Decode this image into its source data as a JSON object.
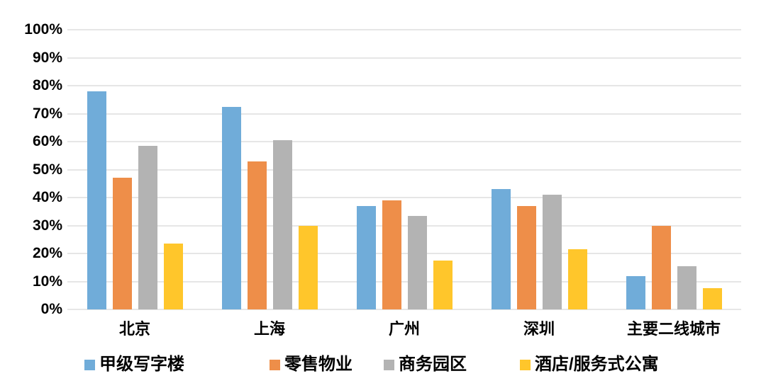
{
  "chart_data": {
    "type": "bar",
    "title": "",
    "xlabel": "",
    "ylabel": "",
    "categories": [
      "北京",
      "上海",
      "广州",
      "深圳",
      "主要二线城市"
    ],
    "series": [
      {
        "name": "甲级写字楼",
        "color": "#70ACD9",
        "values": [
          78,
          72.5,
          37,
          43,
          12
        ]
      },
      {
        "name": "零售物业",
        "color": "#EE8E49",
        "values": [
          47,
          53,
          39,
          37,
          30
        ]
      },
      {
        "name": "商务园区",
        "color": "#B3B3B3",
        "values": [
          58.5,
          60.5,
          33.5,
          41,
          15.5
        ]
      },
      {
        "name": "酒店/服务式公寓",
        "color": "#FFC62B",
        "values": [
          23.5,
          30,
          17.5,
          21.5,
          7.5
        ]
      }
    ],
    "ylim": [
      0,
      100
    ],
    "ytick_step": 10,
    "ytick_labels": [
      "0%",
      "10%",
      "20%",
      "30%",
      "40%",
      "50%",
      "60%",
      "70%",
      "80%",
      "90%",
      "100%"
    ],
    "grid": "horizontal-only",
    "legend_position": "bottom",
    "colors": {
      "background": "#FFFFFF",
      "gridline": "#E6E6E6",
      "text": "#000000"
    }
  }
}
